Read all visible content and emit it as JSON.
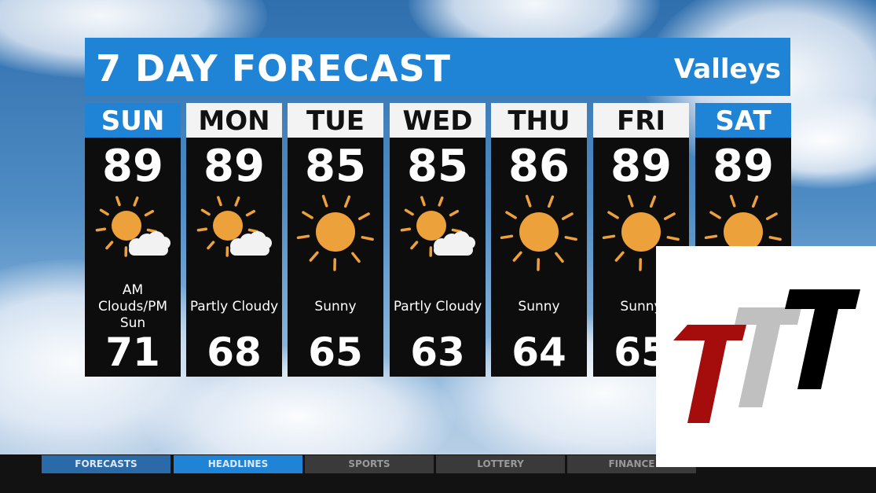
{
  "header": {
    "title": "7 DAY FORECAST",
    "region": "Valleys"
  },
  "days": [
    {
      "day": "SUN",
      "high": "89",
      "low": "71",
      "condition": "AM Clouds/PM Sun",
      "icon": "sun-cloud-icon",
      "highlight": true
    },
    {
      "day": "MON",
      "high": "89",
      "low": "68",
      "condition": "Partly Cloudy",
      "icon": "sun-cloud-icon",
      "highlight": false
    },
    {
      "day": "TUE",
      "high": "85",
      "low": "65",
      "condition": "Sunny",
      "icon": "sun-icon",
      "highlight": false
    },
    {
      "day": "WED",
      "high": "85",
      "low": "63",
      "condition": "Partly Cloudy",
      "icon": "sun-cloud-icon",
      "highlight": false
    },
    {
      "day": "THU",
      "high": "86",
      "low": "64",
      "condition": "Sunny",
      "icon": "sun-icon",
      "highlight": false
    },
    {
      "day": "FRI",
      "high": "89",
      "low": "65",
      "condition": "Sunny",
      "icon": "sun-icon",
      "highlight": false
    },
    {
      "day": "SAT",
      "high": "89",
      "low": "",
      "condition": "",
      "icon": "sun-icon",
      "highlight": true
    }
  ],
  "ticker": {
    "tabs": [
      {
        "label": "FORECASTS",
        "active": false,
        "color": "#2a6aa8"
      },
      {
        "label": "HEADLINES",
        "active": true,
        "color": "#1f84d6"
      },
      {
        "label": "SPORTS",
        "active": false,
        "color": "#3a3a3a"
      },
      {
        "label": "LOTTERY",
        "active": false,
        "color": "#3a3a3a"
      },
      {
        "label": "FINANCE",
        "active": false,
        "color": "#3a3a3a"
      }
    ]
  },
  "colors": {
    "accent": "#1f84d6",
    "sun": "#eda13a",
    "panel": "#0d0d0d"
  },
  "logo": {
    "colors": [
      "#a50d0d",
      "#c0c0c0",
      "#000000"
    ]
  }
}
